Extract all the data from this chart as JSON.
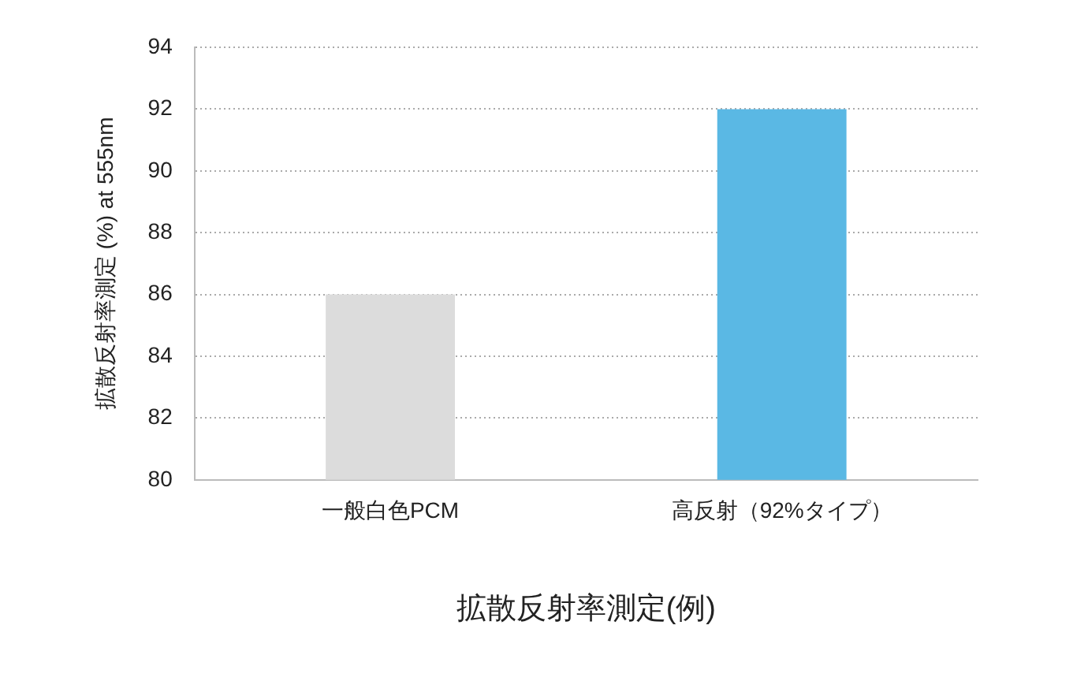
{
  "chart_data": {
    "type": "bar",
    "xlabel": "拡散反射率測定(例)",
    "ylabel": "拡散反射率測定 (%) at 555nm",
    "categories": [
      "一般白色PCM",
      "高反射（92%タイプ）"
    ],
    "values": [
      86,
      92
    ],
    "colors": [
      "#dcdcdc",
      "#5ab8e4"
    ],
    "ylim": [
      80,
      94
    ],
    "yticks": [
      80,
      82,
      84,
      86,
      88,
      90,
      92,
      94
    ],
    "grid": "y"
  }
}
